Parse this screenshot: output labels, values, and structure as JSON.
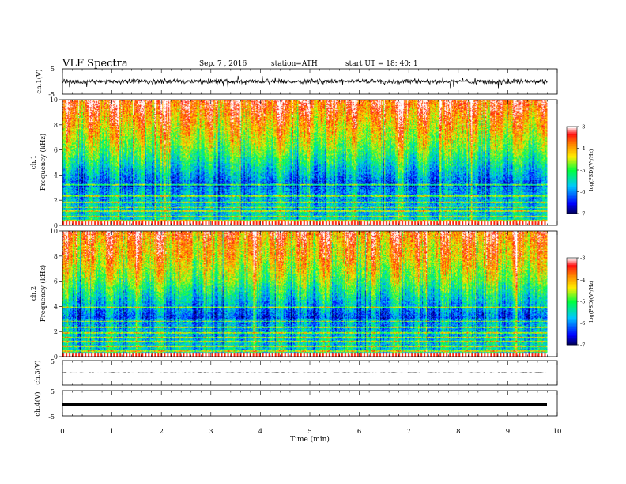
{
  "header": {
    "title": "VLF  Spectra",
    "date": "Sep. 7  , 2016",
    "station": "station=ATH",
    "start": "start  UT  =    18: 40: 1"
  },
  "chart_data": [
    {
      "type": "line",
      "panel": "ch1-waveform",
      "ylabel": "ch.1(V)",
      "ylim": [
        -5,
        5
      ],
      "yticks": [
        5,
        -5
      ],
      "note": "noisy waveform around 0 V, amplitude about ±1.5 V"
    },
    {
      "type": "heatmap",
      "panel": "ch1-spectrogram",
      "ylabel": "Frequency  (kHz)",
      "channel_label": "ch.1",
      "ylim": [
        0,
        10
      ],
      "yticks": [
        0,
        2,
        4,
        6,
        8,
        10
      ],
      "colorbar": {
        "label": "log(PSD)(V²/Hz)",
        "ticks": [
          -3,
          -4,
          -5,
          -6,
          -7
        ],
        "range": [
          -7,
          -3
        ]
      }
    },
    {
      "type": "heatmap",
      "panel": "ch2-spectrogram",
      "ylabel": "Frequency  (kHz)",
      "channel_label": "ch.2",
      "ylim": [
        0,
        10
      ],
      "yticks": [
        0,
        2,
        4,
        6,
        8,
        10
      ],
      "colorbar": {
        "label": "log(PSD)(V²/Hz)",
        "ticks": [
          -3,
          -4,
          -5,
          -6,
          -7
        ],
        "range": [
          -7,
          -3
        ]
      }
    },
    {
      "type": "line",
      "panel": "ch3-waveform",
      "ylabel": "ch.3(V)",
      "ylim": [
        -5,
        5
      ],
      "yticks": [
        5
      ],
      "note": "flat trace near 0 V"
    },
    {
      "type": "line",
      "panel": "ch4-waveform",
      "ylabel": "ch.4(V)",
      "ylim": [
        -5,
        5
      ],
      "yticks": [
        5,
        -5
      ],
      "note": "thick flat trace near 0 V"
    }
  ],
  "x_axis": {
    "label": "Time  (min)",
    "ticks": [
      0,
      1,
      2,
      3,
      4,
      5,
      6,
      7,
      8,
      9,
      10
    ],
    "range": [
      0,
      10
    ],
    "data_end": 9.8
  },
  "colors": {
    "low": "#00004e",
    "blue": "#0000ff",
    "cyan": "#00c8ff",
    "green": "#00ff40",
    "yellow": "#ffee00",
    "orange": "#ff8800",
    "red": "#ff1010",
    "high": "#ffffff"
  }
}
